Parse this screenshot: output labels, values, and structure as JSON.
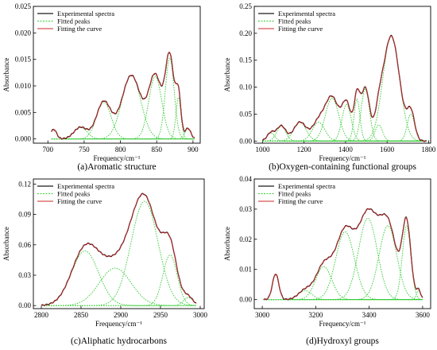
{
  "chart_data": [
    {
      "id": "a",
      "type": "line",
      "caption": "(a)Aromatic structure",
      "xlabel": "Frequency/cm⁻¹",
      "ylabel": "Absorbance",
      "xlim": [
        680,
        910
      ],
      "ylim": [
        -0.0008,
        0.025
      ],
      "xticks": [
        700,
        750,
        800,
        850,
        900
      ],
      "yticks": [
        0.0,
        0.005,
        0.01,
        0.015,
        0.02,
        0.025
      ],
      "ytick_labels": [
        "0.000",
        "0.005",
        "0.010",
        "0.015",
        "0.020",
        "0.025"
      ],
      "baseline": 0.0,
      "x_range": [
        705,
        902
      ],
      "legend": [
        "Experimental spectra",
        "Fitted peaks",
        "Fitting the curve"
      ],
      "peaks": [
        {
          "center": 708,
          "height": 0.0018,
          "width": 4
        },
        {
          "center": 745,
          "height": 0.0022,
          "width": 9
        },
        {
          "center": 777,
          "height": 0.007,
          "width": 10
        },
        {
          "center": 815,
          "height": 0.012,
          "width": 13
        },
        {
          "center": 848,
          "height": 0.0118,
          "width": 9
        },
        {
          "center": 868,
          "height": 0.0153,
          "width": 6
        },
        {
          "center": 880,
          "height": 0.0078,
          "width": 3.5
        },
        {
          "center": 893,
          "height": 0.002,
          "width": 4
        }
      ]
    },
    {
      "id": "b",
      "type": "line",
      "caption": "(b)Oxygen-containing functional groups",
      "xlabel": "Frequency/cm⁻¹",
      "ylabel": "Absorbance",
      "xlim": [
        960,
        1810
      ],
      "ylim": [
        -0.004,
        0.25
      ],
      "xticks": [
        1000,
        1200,
        1400,
        1600,
        1800
      ],
      "yticks": [
        0.0,
        0.05,
        0.1,
        0.15,
        0.2,
        0.25
      ],
      "ytick_labels": [
        "0.00",
        "0.05",
        "0.10",
        "0.15",
        "0.20",
        "0.25"
      ],
      "baseline": 0.0,
      "x_range": [
        1000,
        1790
      ],
      "legend": [
        "Experimental spectra",
        "Fitted peaks",
        "Fitting the curve"
      ],
      "peaks": [
        {
          "center": 1040,
          "height": 0.015,
          "width": 18
        },
        {
          "center": 1090,
          "height": 0.028,
          "width": 22
        },
        {
          "center": 1180,
          "height": 0.035,
          "width": 30
        },
        {
          "center": 1270,
          "height": 0.035,
          "width": 30
        },
        {
          "center": 1335,
          "height": 0.08,
          "width": 32
        },
        {
          "center": 1405,
          "height": 0.068,
          "width": 22
        },
        {
          "center": 1455,
          "height": 0.078,
          "width": 14
        },
        {
          "center": 1495,
          "height": 0.097,
          "width": 20
        },
        {
          "center": 1560,
          "height": 0.03,
          "width": 18
        },
        {
          "center": 1620,
          "height": 0.195,
          "width": 40
        },
        {
          "center": 1715,
          "height": 0.05,
          "width": 18
        }
      ]
    },
    {
      "id": "c",
      "type": "line",
      "caption": "(c)Aliphatic hydrocarbons",
      "xlabel": "Frequency/cm⁻¹",
      "ylabel": "Absorbance",
      "xlim": [
        2790,
        3005
      ],
      "ylim": [
        -0.003,
        0.125
      ],
      "xticks": [
        2800,
        2850,
        2900,
        2950,
        3000
      ],
      "yticks": [
        0.0,
        0.03,
        0.06,
        0.09,
        0.12
      ],
      "ytick_labels": [
        "0.00",
        "0.03",
        "0.06",
        "0.09",
        "0.12"
      ],
      "baseline": 0.0,
      "x_range": [
        2800,
        2995
      ],
      "legend": [
        "Experimental spectra",
        "Fitted peaks",
        "Fitting the curve"
      ],
      "peaks": [
        {
          "center": 2855,
          "height": 0.054,
          "width": 17
        },
        {
          "center": 2893,
          "height": 0.037,
          "width": 20
        },
        {
          "center": 2930,
          "height": 0.103,
          "width": 17
        },
        {
          "center": 2962,
          "height": 0.05,
          "width": 9
        },
        {
          "center": 2985,
          "height": 0.008,
          "width": 6
        }
      ]
    },
    {
      "id": "d",
      "type": "line",
      "caption": "(d)Hydroxyl groups",
      "xlabel": "Frequency/cm⁻¹",
      "ylabel": "Absorbance",
      "xlim": [
        2970,
        3630
      ],
      "ylim": [
        -0.003,
        0.04
      ],
      "xticks": [
        3000,
        3200,
        3400,
        3600
      ],
      "yticks": [
        0.0,
        0.01,
        0.02,
        0.03,
        0.04
      ],
      "ytick_labels": [
        "0.00",
        "0.01",
        "0.02",
        "0.03",
        "0.04"
      ],
      "baseline": 0.0,
      "x_range": [
        3005,
        3600
      ],
      "legend": [
        "Experimental spectra",
        "Fitted peaks",
        "Fitting the curve"
      ],
      "peaks": [
        {
          "center": 3050,
          "height": 0.0085,
          "width": 12
        },
        {
          "center": 3160,
          "height": 0.003,
          "width": 25
        },
        {
          "center": 3230,
          "height": 0.011,
          "width": 30
        },
        {
          "center": 3310,
          "height": 0.0225,
          "width": 35
        },
        {
          "center": 3395,
          "height": 0.027,
          "width": 35
        },
        {
          "center": 3470,
          "height": 0.0245,
          "width": 33
        },
        {
          "center": 3540,
          "height": 0.0245,
          "width": 16
        },
        {
          "center": 3585,
          "height": 0.003,
          "width": 8
        }
      ]
    }
  ],
  "colors": {
    "experimental": "#1a1a1a",
    "fitted_peaks": "#33cc33",
    "fitting_curve": "#cc2a2a",
    "axis": "#000000"
  }
}
